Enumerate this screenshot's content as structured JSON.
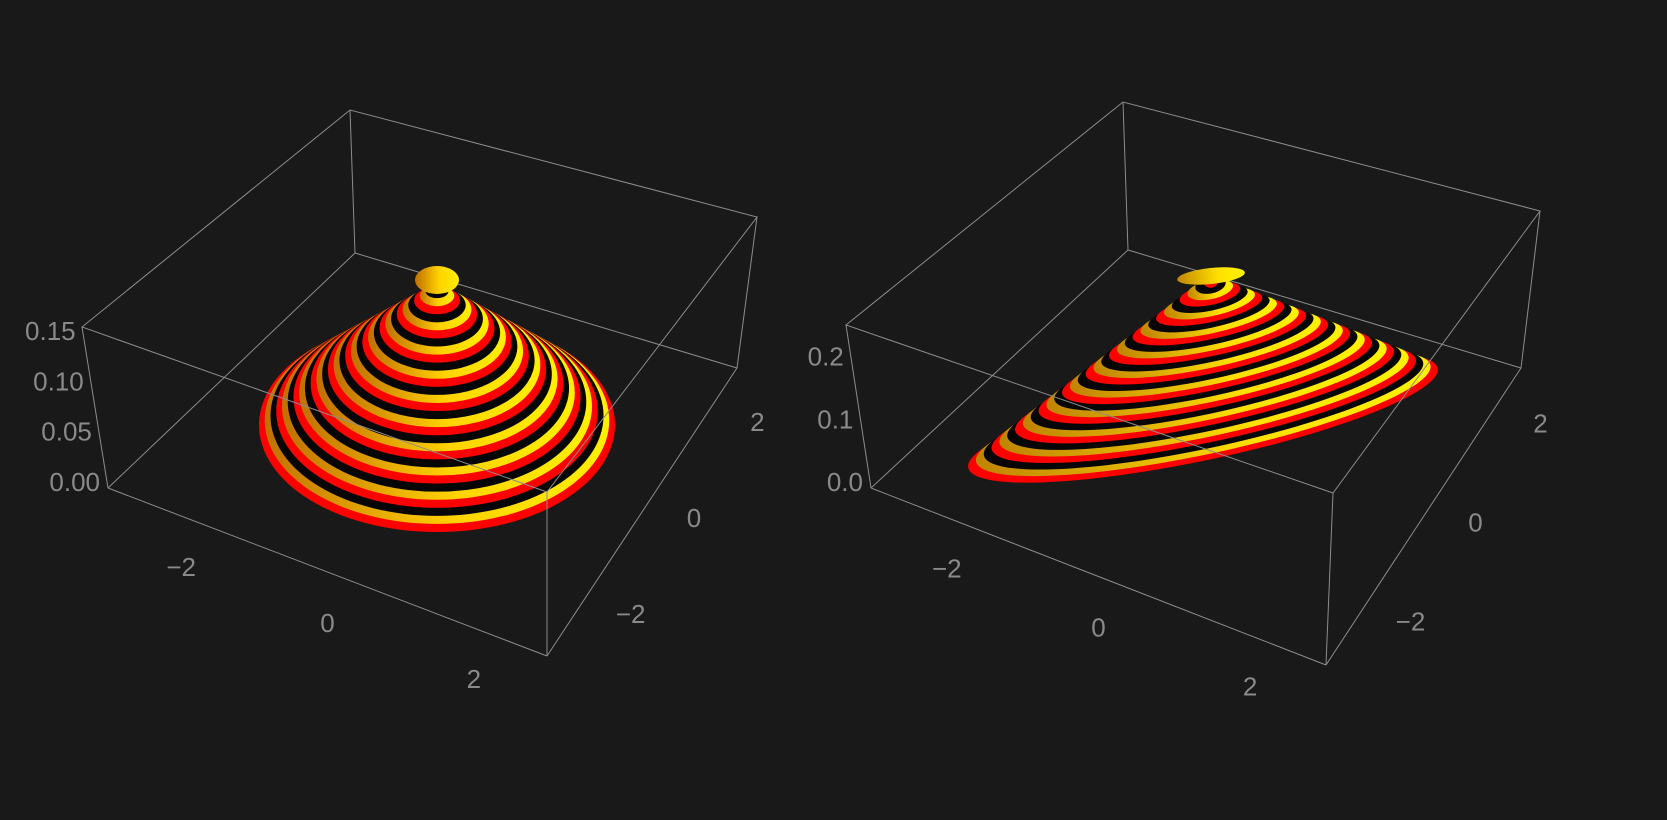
{
  "chart_data": [
    {
      "type": "surface3d",
      "title": "",
      "shape": "circular cone with concentric contour bands",
      "xlabel": "",
      "ylabel": "",
      "zlabel": "",
      "x_ticks": [
        "−2",
        "0",
        "2"
      ],
      "y_ticks": [
        "−2",
        "0",
        "2"
      ],
      "z_ticks": [
        "0.00",
        "0.05",
        "0.10",
        "0.15"
      ],
      "xlim": [
        -3,
        3
      ],
      "ylim": [
        -3,
        3
      ],
      "zlim": [
        0,
        0.16
      ],
      "peak_z": 0.16,
      "bands": 10,
      "band_colors": [
        "#ff0000",
        "#ffee00",
        "#000000"
      ],
      "background": "#191919",
      "box": true
    },
    {
      "type": "surface3d",
      "title": "",
      "shape": "elongated elliptical cone with diagonal contour bands",
      "xlabel": "",
      "ylabel": "",
      "zlabel": "",
      "x_ticks": [
        "−2",
        "0",
        "2"
      ],
      "y_ticks": [
        "−2",
        "0",
        "2"
      ],
      "z_ticks": [
        "0.0",
        "0.1",
        "0.2"
      ],
      "xlim": [
        -3,
        3
      ],
      "ylim": [
        -3,
        3
      ],
      "zlim": [
        0,
        0.26
      ],
      "peak_z": 0.26,
      "bands": 10,
      "band_colors": [
        "#ff0000",
        "#ffee00",
        "#000000"
      ],
      "background": "#191919",
      "box": true
    }
  ]
}
